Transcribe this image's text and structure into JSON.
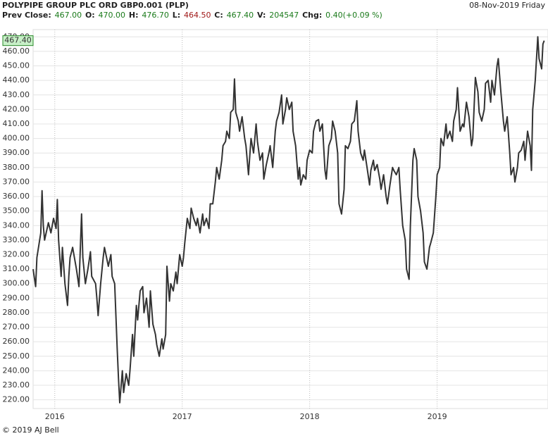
{
  "chart_data": {
    "type": "line",
    "title": "POLYPIPE GROUP PLC ORD GBP0.001 (PLP)",
    "date": "08-Nov-2019 Friday",
    "stats": [
      {
        "label": "Prev Close:",
        "value": "467.00",
        "color": "#1a7a1a"
      },
      {
        "label": "O:",
        "value": "470.00",
        "color": "#1a7a1a"
      },
      {
        "label": "H:",
        "value": "476.70",
        "color": "#1a7a1a"
      },
      {
        "label": "L:",
        "value": "464.50",
        "color": "#a01818"
      },
      {
        "label": "C:",
        "value": "467.40",
        "color": "#1a7a1a"
      },
      {
        "label": "V:",
        "value": "204547",
        "color": "#1a7a1a"
      },
      {
        "label": "Chg:",
        "value": "0.40(+0.09 %)",
        "color": "#1a7a1a"
      }
    ],
    "copyright": "© 2019 AJ Bell",
    "price_marker": {
      "value": 467.4,
      "label": "467.40",
      "color": "#c8f0c8"
    },
    "x": [
      2015.83,
      2015.85,
      2015.86,
      2015.89,
      2015.9,
      2015.91,
      2015.92,
      2015.95,
      2015.97,
      2015.99,
      2016.01,
      2016.02,
      2016.03,
      2016.05,
      2016.06,
      2016.08,
      2016.1,
      2016.11,
      2016.12,
      2016.14,
      2016.17,
      2016.19,
      2016.21,
      2016.22,
      2016.24,
      2016.26,
      2016.28,
      2016.29,
      2016.32,
      2016.33,
      2016.34,
      2016.36,
      2016.38,
      2016.39,
      2016.42,
      2016.44,
      2016.45,
      2016.47,
      2016.49,
      2016.5,
      2016.51,
      2016.53,
      2016.54,
      2016.56,
      2016.58,
      2016.59,
      2016.61,
      2016.62,
      2016.64,
      2016.65,
      2016.67,
      2016.69,
      2016.7,
      2016.72,
      2016.74,
      2016.75,
      2016.77,
      2016.79,
      2016.8,
      2016.82,
      2016.84,
      2016.85,
      2016.87,
      2016.88,
      2016.9,
      2016.91,
      2016.93,
      2016.95,
      2016.96,
      2016.98,
      2017.0,
      2017.01,
      2017.02,
      2017.04,
      2017.06,
      2017.07,
      2017.09,
      2017.11,
      2017.12,
      2017.14,
      2017.16,
      2017.17,
      2017.19,
      2017.21,
      2017.22,
      2017.24,
      2017.26,
      2017.27,
      2017.29,
      2017.31,
      2017.32,
      2017.34,
      2017.35,
      2017.37,
      2017.38,
      2017.4,
      2017.41,
      2017.42,
      2017.44,
      2017.45,
      2017.47,
      2017.49,
      2017.5,
      2017.52,
      2017.53,
      2017.54,
      2017.56,
      2017.58,
      2017.59,
      2017.61,
      2017.63,
      2017.64,
      2017.66,
      2017.68,
      2017.69,
      2017.71,
      2017.73,
      2017.74,
      2017.76,
      2017.78,
      2017.79,
      2017.81,
      2017.82,
      2017.84,
      2017.86,
      2017.87,
      2017.89,
      2017.91,
      2017.92,
      2017.93,
      2017.95,
      2017.97,
      2017.98,
      2018.0,
      2018.02,
      2018.03,
      2018.05,
      2018.07,
      2018.08,
      2018.1,
      2018.12,
      2018.13,
      2018.15,
      2018.17,
      2018.18,
      2018.2,
      2018.22,
      2018.23,
      2018.25,
      2018.27,
      2018.28,
      2018.3,
      2018.32,
      2018.33,
      2018.35,
      2018.37,
      2018.38,
      2018.4,
      2018.42,
      2018.43,
      2018.45,
      2018.47,
      2018.48,
      2018.5,
      2018.51,
      2018.53,
      2018.55,
      2018.56,
      2018.58,
      2018.6,
      2018.61,
      2018.63,
      2018.65,
      2018.66,
      2018.68,
      2018.7,
      2018.71,
      2018.73,
      2018.75,
      2018.76,
      2018.78,
      2018.79,
      2018.81,
      2018.82,
      2018.84,
      2018.85,
      2018.87,
      2018.89,
      2018.9,
      2018.92,
      2018.94,
      2018.95,
      2018.97,
      2018.99,
      2019.0,
      2019.02,
      2019.03,
      2019.05,
      2019.07,
      2019.08,
      2019.1,
      2019.12,
      2019.13,
      2019.15,
      2019.16,
      2019.18,
      2019.2,
      2019.21,
      2019.23,
      2019.25,
      2019.27,
      2019.28,
      2019.3,
      2019.32,
      2019.33,
      2019.35,
      2019.37,
      2019.38,
      2019.4,
      2019.42,
      2019.43,
      2019.45,
      2019.47,
      2019.48,
      2019.5,
      2019.52,
      2019.53,
      2019.55,
      2019.57,
      2019.58,
      2019.6,
      2019.61,
      2019.63,
      2019.64,
      2019.66,
      2019.68,
      2019.69,
      2019.71,
      2019.73,
      2019.74,
      2019.75,
      2019.77,
      2019.79,
      2019.8,
      2019.82,
      2019.83,
      2019.84
    ],
    "series": [
      {
        "name": "PLP",
        "color": "#333333",
        "values": [
          310,
          298,
          318,
          335,
          364,
          340,
          330,
          342,
          335,
          345,
          338,
          358,
          330,
          305,
          325,
          300,
          285,
          305,
          318,
          325,
          310,
          298,
          348,
          318,
          300,
          310,
          322,
          305,
          300,
          290,
          278,
          300,
          318,
          325,
          312,
          320,
          305,
          300,
          255,
          235,
          218,
          240,
          225,
          238,
          230,
          240,
          265,
          250,
          285,
          275,
          295,
          298,
          280,
          290,
          270,
          295,
          272,
          265,
          258,
          250,
          262,
          255,
          265,
          312,
          288,
          300,
          295,
          308,
          300,
          320,
          312,
          318,
          328,
          345,
          338,
          352,
          345,
          340,
          345,
          335,
          348,
          340,
          345,
          338,
          355,
          355,
          370,
          380,
          372,
          385,
          395,
          398,
          405,
          400,
          418,
          420,
          441,
          418,
          412,
          405,
          415,
          400,
          395,
          375,
          388,
          400,
          390,
          410,
          398,
          385,
          390,
          372,
          382,
          390,
          395,
          380,
          405,
          412,
          418,
          430,
          410,
          420,
          428,
          420,
          425,
          405,
          395,
          372,
          380,
          368,
          375,
          372,
          385,
          392,
          390,
          405,
          412,
          413,
          405,
          410,
          378,
          372,
          395,
          400,
          412,
          405,
          390,
          355,
          348,
          365,
          395,
          393,
          398,
          410,
          412,
          426,
          405,
          390,
          385,
          392,
          380,
          368,
          378,
          385,
          378,
          382,
          372,
          365,
          375,
          360,
          355,
          368,
          380,
          378,
          375,
          380,
          365,
          340,
          330,
          310,
          303,
          340,
          385,
          393,
          385,
          360,
          350,
          335,
          315,
          310,
          325,
          328,
          335,
          360,
          375,
          380,
          400,
          395,
          410,
          400,
          405,
          398,
          412,
          420,
          435,
          405,
          410,
          408,
          425,
          415,
          395,
          400,
          442,
          432,
          418,
          412,
          420,
          438,
          440,
          425,
          440,
          430,
          450,
          455,
          432,
          412,
          405,
          415,
          390,
          375,
          380,
          370,
          380,
          390,
          392,
          398,
          385,
          405,
          395,
          378,
          420,
          440,
          470,
          455,
          448,
          465,
          467.4
        ]
      }
    ],
    "xlim": [
      2015.83,
      2019.87
    ],
    "xticks": [
      2016,
      2017,
      2018,
      2019
    ],
    "ylim": [
      214,
      475
    ],
    "yticks": [
      {
        "value": 220,
        "label": "220.00"
      },
      {
        "value": 230,
        "label": "230.00"
      },
      {
        "value": 240,
        "label": "240.00"
      },
      {
        "value": 250,
        "label": "250.00"
      },
      {
        "value": 260,
        "label": "260.00"
      },
      {
        "value": 270,
        "label": "270.00"
      },
      {
        "value": 280,
        "label": "280.00"
      },
      {
        "value": 290,
        "label": "290.00"
      },
      {
        "value": 300,
        "label": "300.00"
      },
      {
        "value": 310,
        "label": "310.00"
      },
      {
        "value": 320,
        "label": "320.00"
      },
      {
        "value": 330,
        "label": "330.00"
      },
      {
        "value": 340,
        "label": "340.00"
      },
      {
        "value": 350,
        "label": "350.00"
      },
      {
        "value": 360,
        "label": "360.00"
      },
      {
        "value": 370,
        "label": "370.00"
      },
      {
        "value": 380,
        "label": "380.00"
      },
      {
        "value": 390,
        "label": "390.00"
      },
      {
        "value": 400,
        "label": "400.00"
      },
      {
        "value": 410,
        "label": "410.00"
      },
      {
        "value": 420,
        "label": "420.00"
      },
      {
        "value": 430,
        "label": "430.00"
      },
      {
        "value": 440,
        "label": "440.00"
      },
      {
        "value": 450,
        "label": "450.00"
      },
      {
        "value": 460,
        "label": "460.00"
      },
      {
        "value": 470,
        "label": "470.00"
      }
    ],
    "grid": true
  }
}
